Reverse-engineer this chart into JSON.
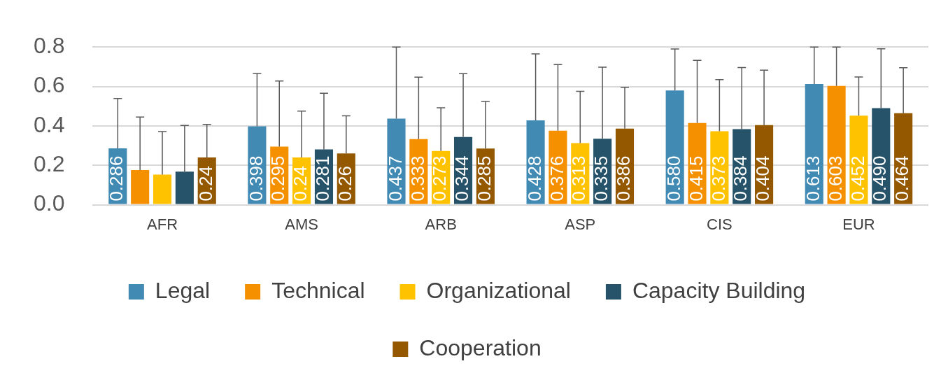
{
  "chart_data": {
    "type": "bar",
    "categories": [
      "AFR",
      "AMS",
      "ARB",
      "ASP",
      "CIS",
      "EUR"
    ],
    "series": [
      {
        "name": "Legal",
        "color": "#418ab3",
        "values": [
          0.286,
          0.398,
          0.437,
          0.428,
          0.58,
          0.613
        ],
        "value_labels": [
          "0.286",
          "0.398",
          "0.437",
          "0.428",
          "0.580",
          "0.613"
        ],
        "errors": [
          [
            0.286,
            0.539
          ],
          [
            0.398,
            0.666
          ],
          [
            0.437,
            0.8
          ],
          [
            0.428,
            0.765
          ],
          [
            0.58,
            0.79
          ],
          [
            0.613,
            0.8
          ]
        ]
      },
      {
        "name": "Technical",
        "color": "#f59100",
        "values": [
          0.176,
          0.295,
          0.333,
          0.376,
          0.415,
          0.603
        ],
        "value_labels": [
          null,
          "0.295",
          "0.333",
          "0.376",
          "0.415",
          "0.603"
        ],
        "errors": [
          [
            0.176,
            0.445
          ],
          [
            0.295,
            0.628
          ],
          [
            0.333,
            0.647
          ],
          [
            0.376,
            0.711
          ],
          [
            0.415,
            0.732
          ],
          [
            0.603,
            0.8
          ]
        ]
      },
      {
        "name": "Organizational",
        "color": "#fec200",
        "values": [
          0.153,
          0.24,
          0.273,
          0.313,
          0.373,
          0.452
        ],
        "value_labels": [
          null,
          "0.24",
          "0.273",
          "0.313",
          "0.373",
          "0.452"
        ],
        "errors": [
          [
            0.153,
            0.371
          ],
          [
            0.24,
            0.475
          ],
          [
            0.273,
            0.492
          ],
          [
            0.313,
            0.575
          ],
          [
            0.373,
            0.635
          ],
          [
            0.452,
            0.648
          ]
        ]
      },
      {
        "name": "Capacity Building",
        "color": "#265369",
        "values": [
          0.168,
          0.281,
          0.344,
          0.335,
          0.384,
          0.49
        ],
        "value_labels": [
          null,
          "0.281",
          "0.344",
          "0.335",
          "0.384",
          "0.490"
        ],
        "errors": [
          [
            0.168,
            0.402
          ],
          [
            0.281,
            0.566
          ],
          [
            0.344,
            0.665
          ],
          [
            0.335,
            0.698
          ],
          [
            0.384,
            0.696
          ],
          [
            0.49,
            0.791
          ]
        ]
      },
      {
        "name": "Cooperation",
        "color": "#935800",
        "values": [
          0.24,
          0.26,
          0.285,
          0.386,
          0.404,
          0.464
        ],
        "value_labels": [
          "0.24",
          "0.26",
          "0.285",
          "0.386",
          "0.404",
          "0.464"
        ],
        "errors": [
          [
            0.24,
            0.408
          ],
          [
            0.26,
            0.451
          ],
          [
            0.285,
            0.524
          ],
          [
            0.386,
            0.596
          ],
          [
            0.404,
            0.683
          ],
          [
            0.464,
            0.695
          ]
        ]
      }
    ],
    "ylim": [
      0,
      0.8
    ],
    "yticks": [
      {
        "value": 0,
        "label": "0.0"
      },
      {
        "value": 0.2,
        "label": "0.2"
      },
      {
        "value": 0.4,
        "label": "0.4"
      },
      {
        "value": 0.6,
        "label": "0.6"
      },
      {
        "value": 0.8,
        "label": "0.8"
      }
    ],
    "grid": "y",
    "legend": "bottom"
  }
}
